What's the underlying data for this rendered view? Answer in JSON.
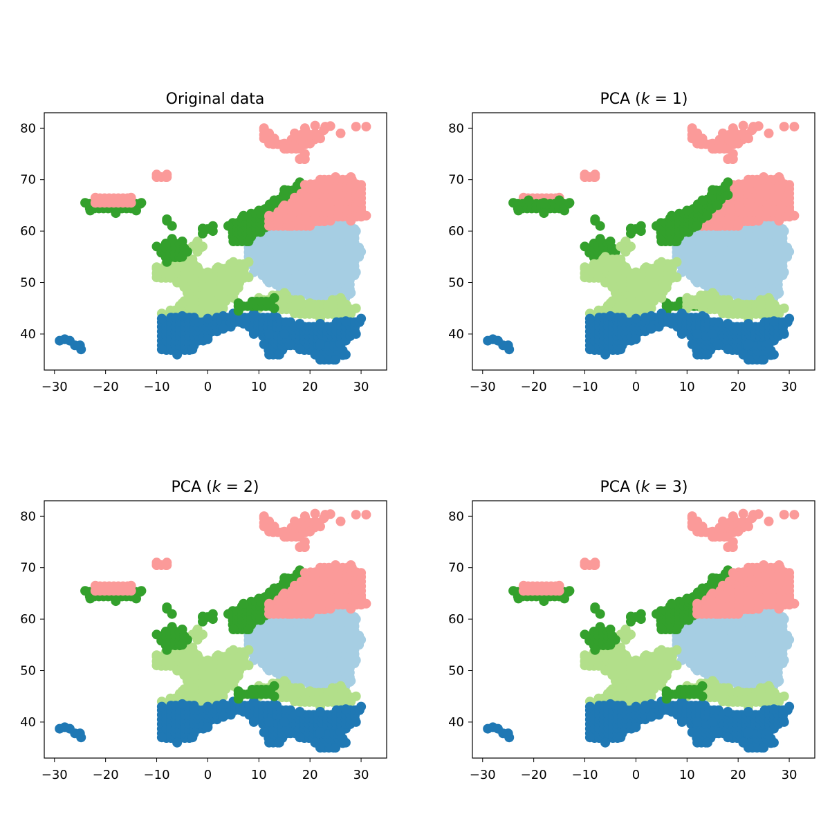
{
  "chart_data": [
    {
      "type": "scatter",
      "title": "Original data",
      "xlim": [
        -32,
        35
      ],
      "ylim": [
        33,
        83
      ],
      "xticks": [
        -30,
        -20,
        -10,
        0,
        10,
        20,
        30
      ],
      "yticks": [
        40,
        50,
        60,
        70,
        80
      ],
      "xtick_labels": [
        "−30",
        "−20",
        "−10",
        "0",
        "10",
        "20",
        "30"
      ],
      "ytick_labels": [
        "40",
        "50",
        "60",
        "70",
        "80"
      ],
      "grid": false,
      "variant": "original"
    },
    {
      "type": "scatter",
      "title": "PCA (k = 1)",
      "xlim": [
        -32,
        35
      ],
      "ylim": [
        33,
        83
      ],
      "xticks": [
        -30,
        -20,
        -10,
        0,
        10,
        20,
        30
      ],
      "yticks": [
        40,
        50,
        60,
        70,
        80
      ],
      "xtick_labels": [
        "−30",
        "−20",
        "−10",
        "0",
        "10",
        "20",
        "30"
      ],
      "ytick_labels": [
        "40",
        "50",
        "60",
        "70",
        "80"
      ],
      "grid": false,
      "variant": "k1"
    },
    {
      "type": "scatter",
      "title": "PCA (k = 2)",
      "xlim": [
        -32,
        35
      ],
      "ylim": [
        33,
        83
      ],
      "xticks": [
        -30,
        -20,
        -10,
        0,
        10,
        20,
        30
      ],
      "yticks": [
        40,
        50,
        60,
        70,
        80
      ],
      "xtick_labels": [
        "−30",
        "−20",
        "−10",
        "0",
        "10",
        "20",
        "30"
      ],
      "ytick_labels": [
        "40",
        "50",
        "60",
        "70",
        "80"
      ],
      "grid": false,
      "variant": "k2"
    },
    {
      "type": "scatter",
      "title": "PCA (k = 3)",
      "xlim": [
        -32,
        35
      ],
      "ylim": [
        33,
        83
      ],
      "xticks": [
        -30,
        -20,
        -10,
        0,
        10,
        20,
        30
      ],
      "yticks": [
        40,
        50,
        60,
        70,
        80
      ],
      "xtick_labels": [
        "−30",
        "−20",
        "−10",
        "0",
        "10",
        "20",
        "30"
      ],
      "ytick_labels": [
        "40",
        "50",
        "60",
        "70",
        "80"
      ],
      "grid": false,
      "variant": "k3"
    }
  ],
  "colors": {
    "light_blue": "#a6cee3",
    "dark_blue": "#1f78b4",
    "light_green": "#b2df8a",
    "dark_green": "#33a02c",
    "pink": "#fb9a99"
  },
  "clusters": {
    "pink": {
      "color": "pink",
      "polygons": [
        [
          [
            11,
            80
          ],
          [
            12,
            79
          ],
          [
            13,
            78
          ],
          [
            15,
            77
          ],
          [
            17,
            79
          ],
          [
            19,
            80
          ],
          [
            21,
            79
          ],
          [
            23,
            80
          ],
          [
            22,
            78
          ],
          [
            20,
            77
          ],
          [
            18,
            76
          ],
          [
            15,
            76
          ],
          [
            12,
            77
          ],
          [
            11,
            78
          ]
        ],
        [
          [
            18,
            74
          ],
          [
            19,
            75
          ],
          [
            19,
            74
          ]
        ],
        [
          [
            12,
            63
          ],
          [
            15,
            65
          ],
          [
            17,
            66.5
          ],
          [
            19,
            69
          ],
          [
            22,
            70
          ],
          [
            25,
            70.5
          ],
          [
            28,
            70.5
          ],
          [
            30,
            69
          ],
          [
            30,
            64
          ],
          [
            31,
            63
          ],
          [
            28,
            62
          ],
          [
            24,
            62
          ],
          [
            20,
            61
          ],
          [
            16,
            61
          ],
          [
            12,
            61
          ]
        ],
        [
          [
            -22,
            66.5
          ],
          [
            -15,
            66.5
          ],
          [
            -15,
            65.5
          ],
          [
            -22,
            65.5
          ]
        ],
        [
          [
            -10,
            71
          ],
          [
            -8,
            71
          ],
          [
            -8,
            70.5
          ],
          [
            -10,
            70.5
          ]
        ]
      ],
      "points": [
        [
          21,
          80.5
        ],
        [
          23,
          80.3
        ],
        [
          26,
          79
        ],
        [
          29,
          80.3
        ],
        [
          31,
          80.3
        ],
        [
          24,
          80.4
        ]
      ]
    },
    "dark_green": {
      "color": "dark_green",
      "polygons": [
        [
          [
            -24,
            65.5
          ],
          [
            -21,
            66
          ],
          [
            -18,
            65.5
          ],
          [
            -15,
            66
          ],
          [
            -13,
            65.5
          ],
          [
            -14,
            64
          ],
          [
            -18,
            63.5
          ],
          [
            -23,
            64
          ]
        ],
        [
          [
            4,
            61
          ],
          [
            7,
            63
          ],
          [
            10,
            64
          ],
          [
            13,
            66
          ],
          [
            15,
            68
          ],
          [
            18,
            69.5
          ],
          [
            18,
            67
          ],
          [
            16,
            65
          ],
          [
            14,
            63
          ],
          [
            12,
            61
          ],
          [
            8,
            58
          ],
          [
            5,
            58
          ]
        ],
        [
          [
            -10,
            57
          ],
          [
            -7,
            58.5
          ],
          [
            -5,
            58
          ],
          [
            -4,
            56
          ],
          [
            -5,
            55
          ],
          [
            -8,
            54
          ]
        ],
        [
          [
            6,
            46
          ],
          [
            13,
            47
          ],
          [
            13,
            45
          ],
          [
            6,
            44.5
          ]
        ],
        [
          [
            -1,
            60.5
          ],
          [
            1,
            61
          ],
          [
            1,
            60
          ],
          [
            -1,
            59.5
          ]
        ]
      ],
      "points": [
        [
          -8,
          62
        ],
        [
          -7,
          61
        ],
        [
          -8,
          62.3
        ]
      ]
    },
    "light_blue": {
      "color": "light_blue",
      "polygons": [
        [
          [
            8,
            59
          ],
          [
            12,
            61
          ],
          [
            18,
            61
          ],
          [
            24,
            62
          ],
          [
            28,
            62.5
          ],
          [
            29,
            60
          ],
          [
            30,
            56
          ],
          [
            29,
            52
          ],
          [
            28,
            48
          ],
          [
            26,
            46
          ],
          [
            20,
            47
          ],
          [
            15,
            48
          ],
          [
            12,
            50
          ],
          [
            9,
            52
          ],
          [
            8,
            55
          ]
        ]
      ],
      "points": []
    },
    "light_green": {
      "color": "light_green",
      "polygons": [
        [
          [
            -10,
            53
          ],
          [
            -6,
            55
          ],
          [
            -3,
            54.5
          ],
          [
            -2,
            53
          ],
          [
            0,
            52
          ],
          [
            2,
            53
          ],
          [
            5,
            54
          ],
          [
            8,
            54
          ],
          [
            8,
            51
          ],
          [
            6,
            49
          ],
          [
            5,
            47
          ],
          [
            3,
            45
          ],
          [
            0,
            43
          ],
          [
            -3,
            42
          ],
          [
            -5,
            41
          ],
          [
            -8,
            42
          ],
          [
            -9,
            44
          ],
          [
            -5,
            46
          ],
          [
            -4,
            48
          ],
          [
            -6,
            50
          ],
          [
            -10,
            51
          ]
        ],
        [
          [
            10,
            47
          ],
          [
            15,
            48
          ],
          [
            20,
            46
          ],
          [
            26,
            47
          ],
          [
            29,
            45
          ],
          [
            28,
            44
          ],
          [
            22,
            43
          ],
          [
            17,
            44
          ],
          [
            13,
            45
          ],
          [
            10,
            45
          ]
        ],
        [
          [
            -3,
            57
          ],
          [
            -2,
            58
          ],
          [
            -1,
            57
          ],
          [
            -2,
            56
          ]
        ]
      ],
      "points": []
    },
    "dark_blue": {
      "color": "dark_blue",
      "polygons": [
        [
          [
            -9,
            43
          ],
          [
            -5,
            43.5
          ],
          [
            0,
            43
          ],
          [
            3,
            43.5
          ],
          [
            5,
            44
          ],
          [
            9,
            44
          ],
          [
            13,
            43.5
          ],
          [
            18,
            42
          ],
          [
            22,
            42
          ],
          [
            27,
            42.5
          ],
          [
            30,
            43
          ],
          [
            29,
            40
          ],
          [
            26,
            38
          ],
          [
            24,
            36
          ],
          [
            21,
            36
          ],
          [
            18,
            37
          ],
          [
            15,
            38
          ],
          [
            12,
            39
          ],
          [
            9,
            40
          ],
          [
            7,
            42
          ],
          [
            3,
            41
          ],
          [
            0,
            39
          ],
          [
            -3,
            37
          ],
          [
            -6,
            36
          ],
          [
            -9,
            37
          ]
        ],
        [
          [
            12,
            40
          ],
          [
            15,
            40
          ],
          [
            16,
            38
          ],
          [
            14,
            36
          ],
          [
            12,
            36
          ],
          [
            11,
            38
          ]
        ],
        [
          [
            22,
            38
          ],
          [
            26,
            38
          ],
          [
            27,
            36
          ],
          [
            25,
            35
          ],
          [
            22,
            35
          ],
          [
            21,
            36
          ]
        ]
      ],
      "points": [
        [
          -29,
          38.7
        ],
        [
          -28,
          39
        ],
        [
          -27,
          38.7
        ],
        [
          -25,
          37.8
        ],
        [
          -24.8,
          37
        ],
        [
          -26,
          37.8
        ]
      ]
    }
  },
  "variants": {
    "original": {
      "layers": [
        "light_blue",
        "light_green",
        "dark_blue",
        "dark_green",
        "pink"
      ]
    },
    "k1": {
      "layers": [
        "light_blue",
        "pink",
        "dark_green",
        "light_green",
        "dark_blue"
      ]
    },
    "k2": {
      "layers": [
        "light_blue",
        "light_green",
        "dark_blue",
        "dark_green",
        "pink"
      ]
    },
    "k3": {
      "layers": [
        "light_blue",
        "light_green",
        "dark_blue",
        "dark_green",
        "pink"
      ]
    }
  }
}
